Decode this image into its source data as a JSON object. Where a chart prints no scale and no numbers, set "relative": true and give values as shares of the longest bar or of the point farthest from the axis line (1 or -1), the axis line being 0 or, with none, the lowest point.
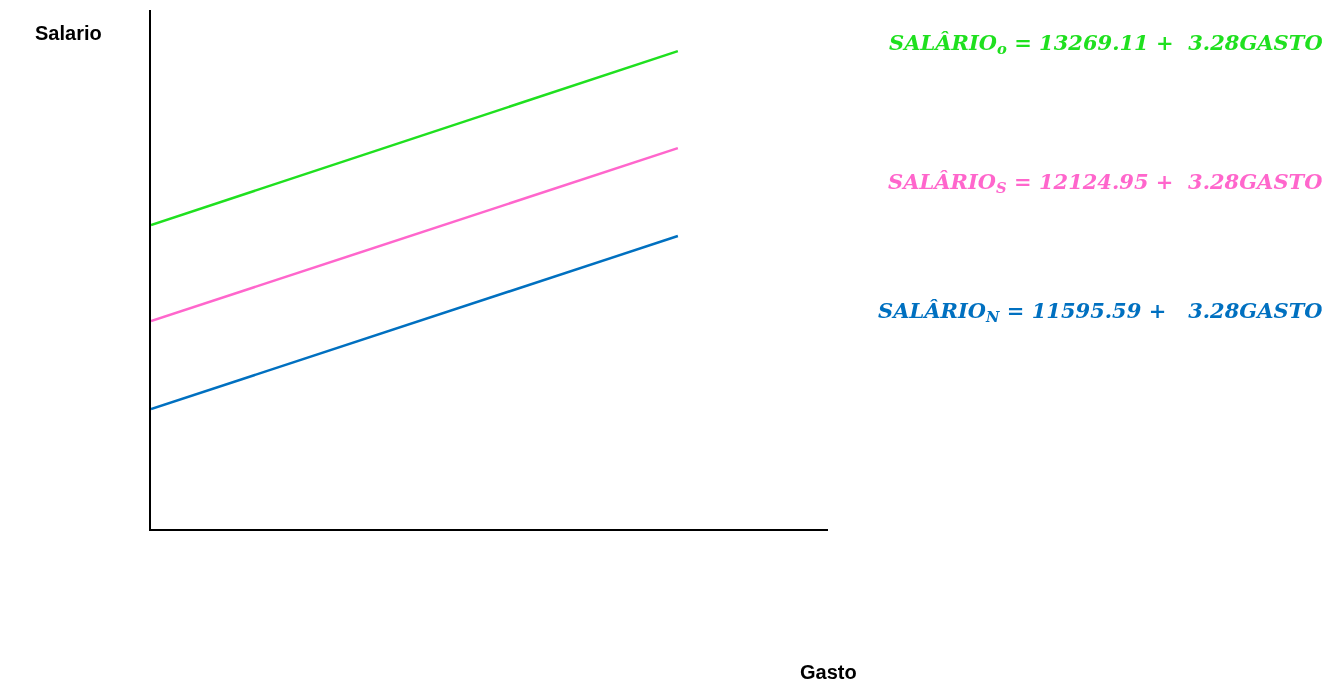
{
  "chart_data": {
    "type": "line",
    "relative": true,
    "annotations": [
      "Gasto"
    ],
    "ylabel": "Salario",
    "categories": [
      null,
      null
    ],
    "legend": false,
    "marker": "none",
    "line_style": "solid",
    "series": [
      {
        "name": "SALÂRIO$_{o}$ = 13269.11 +  3.28GASTO",
        "color": "#1fe01f",
        "values": [
          0.636,
          1
        ]
      },
      {
        "name": "SALÂRIO$_{S}$ = 12124.95 +  3.28GASTO",
        "color": "#ff66cc",
        "values": [
          0.435,
          0.797
        ]
      },
      {
        "name": "SALÂRIO$_{N}$ = 11595.59 +   3.28GASTO",
        "color": "#0070c0",
        "values": [
          0.251,
          0.613
        ]
      }
    ]
  }
}
